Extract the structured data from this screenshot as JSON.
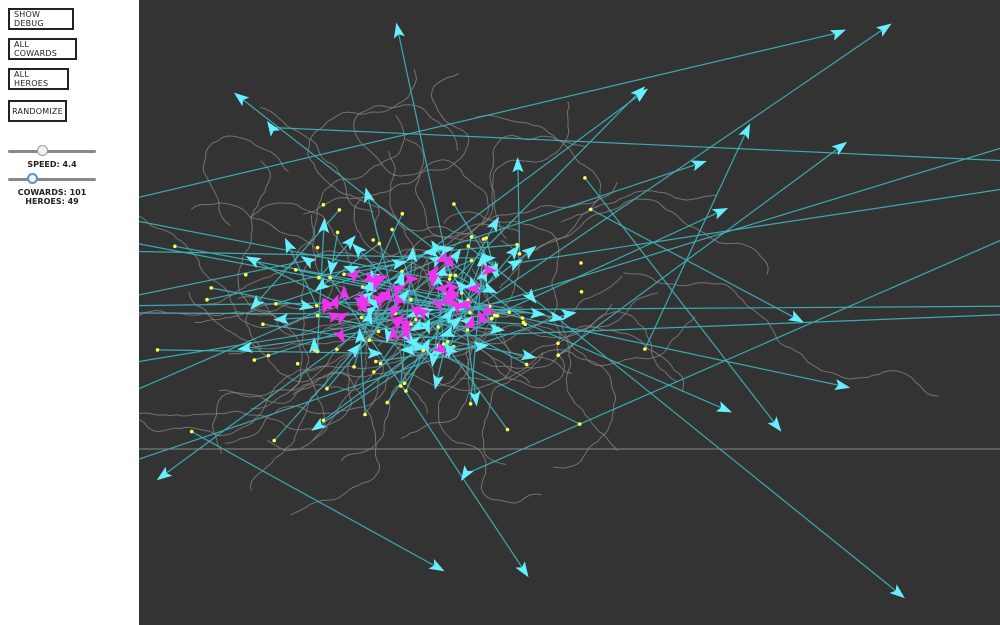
{
  "controls": {
    "debug_label": "SHOW DEBUG",
    "cowards_label": "ALL COWARDS",
    "heroes_label": "ALL HEROES",
    "randomize_label": "RANDOMIZE",
    "speed_text": "SPEED: 4.4",
    "speed_value": 4.4,
    "cowards_text": "COWARDS: 101",
    "heroes_text": "HEROES: 49",
    "cowards_count": 101,
    "heroes_count": 49
  },
  "colors": {
    "stage_background": "#333333",
    "coward_agent": "#66f0ff",
    "hero_agent": "#ee33ee",
    "target_line": "#3fb5bd",
    "trail": "#888888",
    "target_dot": "#ffff55"
  },
  "agents": {
    "cowards": 101,
    "heroes": 49
  }
}
